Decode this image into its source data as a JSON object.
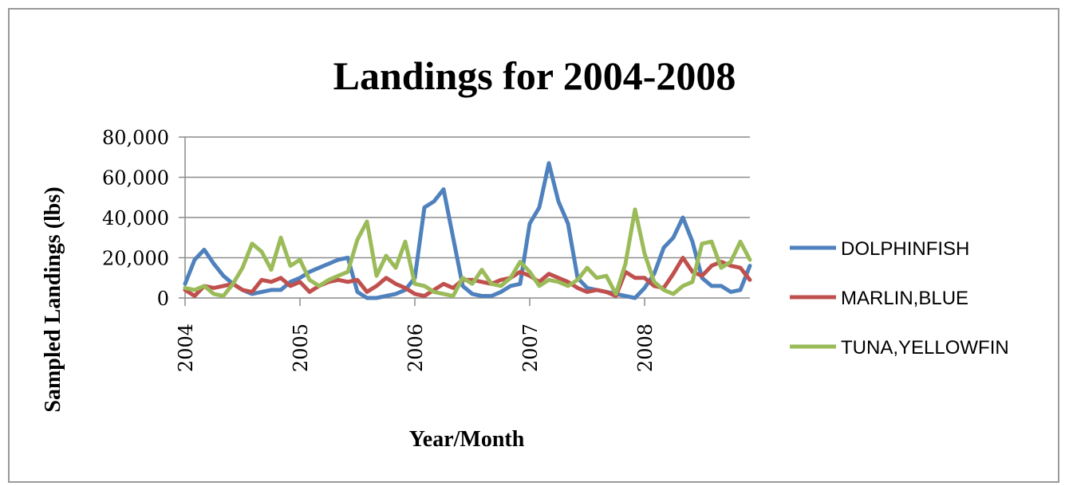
{
  "chart_data": {
    "type": "line",
    "title": "Landings for 2004-2008",
    "xlabel": "Year/Month",
    "ylabel": "Sampled Landings (lbs)",
    "ylim": [
      0,
      80000
    ],
    "yticks": [
      "0",
      "20,000",
      "40,000",
      "60,000",
      "80,000"
    ],
    "xtick_labels": [
      "2004",
      "2005",
      "2006",
      "2007",
      "2008"
    ],
    "grid": true,
    "legend_position": "right",
    "x": [
      "2004-01",
      "2004-02",
      "2004-03",
      "2004-04",
      "2004-05",
      "2004-06",
      "2004-07",
      "2004-08",
      "2004-09",
      "2004-10",
      "2004-11",
      "2004-12",
      "2005-01",
      "2005-02",
      "2005-03",
      "2005-04",
      "2005-05",
      "2005-06",
      "2005-07",
      "2005-08",
      "2005-09",
      "2005-10",
      "2005-11",
      "2005-12",
      "2006-01",
      "2006-02",
      "2006-03",
      "2006-04",
      "2006-05",
      "2006-06",
      "2006-07",
      "2006-08",
      "2006-09",
      "2006-10",
      "2006-11",
      "2006-12",
      "2007-01",
      "2007-02",
      "2007-03",
      "2007-04",
      "2007-05",
      "2007-06",
      "2007-07",
      "2007-08",
      "2007-09",
      "2007-10",
      "2007-11",
      "2007-12",
      "2008-01",
      "2008-02",
      "2008-03",
      "2008-04",
      "2008-05",
      "2008-06",
      "2008-07",
      "2008-08",
      "2008-09",
      "2008-10",
      "2008-11",
      "2008-12"
    ],
    "series": [
      {
        "name": "DOLPHINFISH",
        "color": "#4f81bd",
        "values": [
          7000,
          19000,
          24000,
          17000,
          11000,
          7000,
          4000,
          2000,
          3000,
          4000,
          4000,
          8000,
          10000,
          13000,
          15000,
          17000,
          19000,
          20000,
          3000,
          0,
          0,
          1000,
          2000,
          4000,
          10000,
          45000,
          48000,
          54000,
          30000,
          6000,
          2000,
          1000,
          1000,
          3000,
          6000,
          7000,
          37000,
          45000,
          67000,
          48000,
          37000,
          10000,
          5000,
          4000,
          3000,
          2000,
          1000,
          0,
          5000,
          12000,
          25000,
          30000,
          40000,
          28000,
          10000,
          6000,
          6000,
          3000,
          4000,
          16000
        ]
      },
      {
        "name": "MARLIN,BLUE",
        "color": "#c0504d",
        "values": [
          4000,
          1000,
          6000,
          5000,
          6000,
          7000,
          4000,
          3000,
          9000,
          8000,
          10000,
          6000,
          8000,
          3000,
          6000,
          8000,
          9000,
          8000,
          9000,
          3000,
          6000,
          10000,
          7000,
          5000,
          2000,
          1000,
          4000,
          7000,
          5000,
          9000,
          9000,
          8000,
          7000,
          9000,
          10000,
          13000,
          11000,
          8000,
          12000,
          10000,
          8000,
          5000,
          3000,
          4000,
          3000,
          1000,
          13000,
          10000,
          10000,
          6000,
          5000,
          12000,
          20000,
          13000,
          11000,
          16000,
          18000,
          16000,
          15000,
          9000
        ]
      },
      {
        "name": "TUNA,YELLOWFIN",
        "color": "#9bbb59",
        "values": [
          5000,
          4000,
          6000,
          2000,
          1000,
          7000,
          15000,
          27000,
          23000,
          14000,
          30000,
          16000,
          19000,
          9000,
          6000,
          9000,
          11000,
          13000,
          29000,
          38000,
          11000,
          21000,
          15000,
          28000,
          7000,
          6000,
          3000,
          2000,
          1000,
          10000,
          7000,
          14000,
          7000,
          6000,
          10000,
          18000,
          13000,
          6000,
          9000,
          8000,
          6000,
          9000,
          15000,
          10000,
          11000,
          2000,
          17000,
          44000,
          22000,
          8000,
          4000,
          2000,
          6000,
          8000,
          27000,
          28000,
          15000,
          18000,
          28000,
          19000
        ]
      }
    ]
  }
}
